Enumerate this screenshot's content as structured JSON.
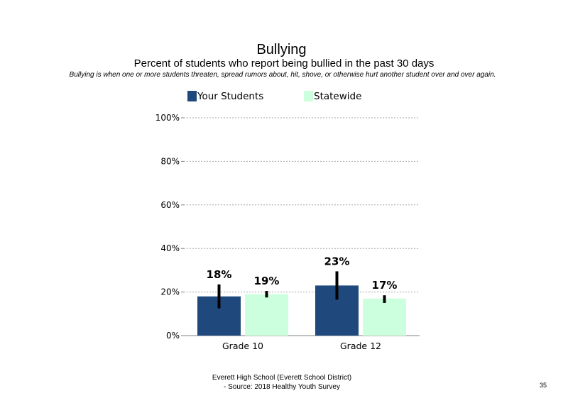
{
  "slide": {
    "title": "Bullying",
    "subtitle": "Percent of students who report being bullied in the past 30 days",
    "note": "Bullying is when one or more students threaten, spread rumors about, hit, shove, or otherwise hurt another student over and over again.",
    "footer_line1": "Everett High School (Everett School District)",
    "footer_line2": "- Source: 2018 Healthy Youth Survey",
    "page_number": "35"
  },
  "colors": {
    "your_students": "#1F497D",
    "statewide": "#CCFFDD",
    "error_bar": "#000000",
    "grid": "#A6A6A6",
    "axis": "#808080"
  },
  "chart_data": {
    "type": "bar",
    "categories": [
      "Grade 10",
      "Grade 12"
    ],
    "series": [
      {
        "name": "Your Students",
        "values": [
          18,
          23
        ],
        "labels": [
          "18%",
          "23%"
        ],
        "error_low": [
          12.5,
          16.5
        ],
        "error_high": [
          23.5,
          29.5
        ]
      },
      {
        "name": "Statewide",
        "values": [
          19,
          17
        ],
        "labels": [
          "19%",
          "17%"
        ],
        "error_low": [
          17.5,
          15
        ],
        "error_high": [
          20.5,
          18.5
        ]
      }
    ],
    "yticks": [
      "0%",
      "20%",
      "40%",
      "60%",
      "80%",
      "100%"
    ],
    "ylim": [
      0,
      100
    ],
    "xlabel": "",
    "ylabel": "",
    "grid": true,
    "legend": "top"
  }
}
